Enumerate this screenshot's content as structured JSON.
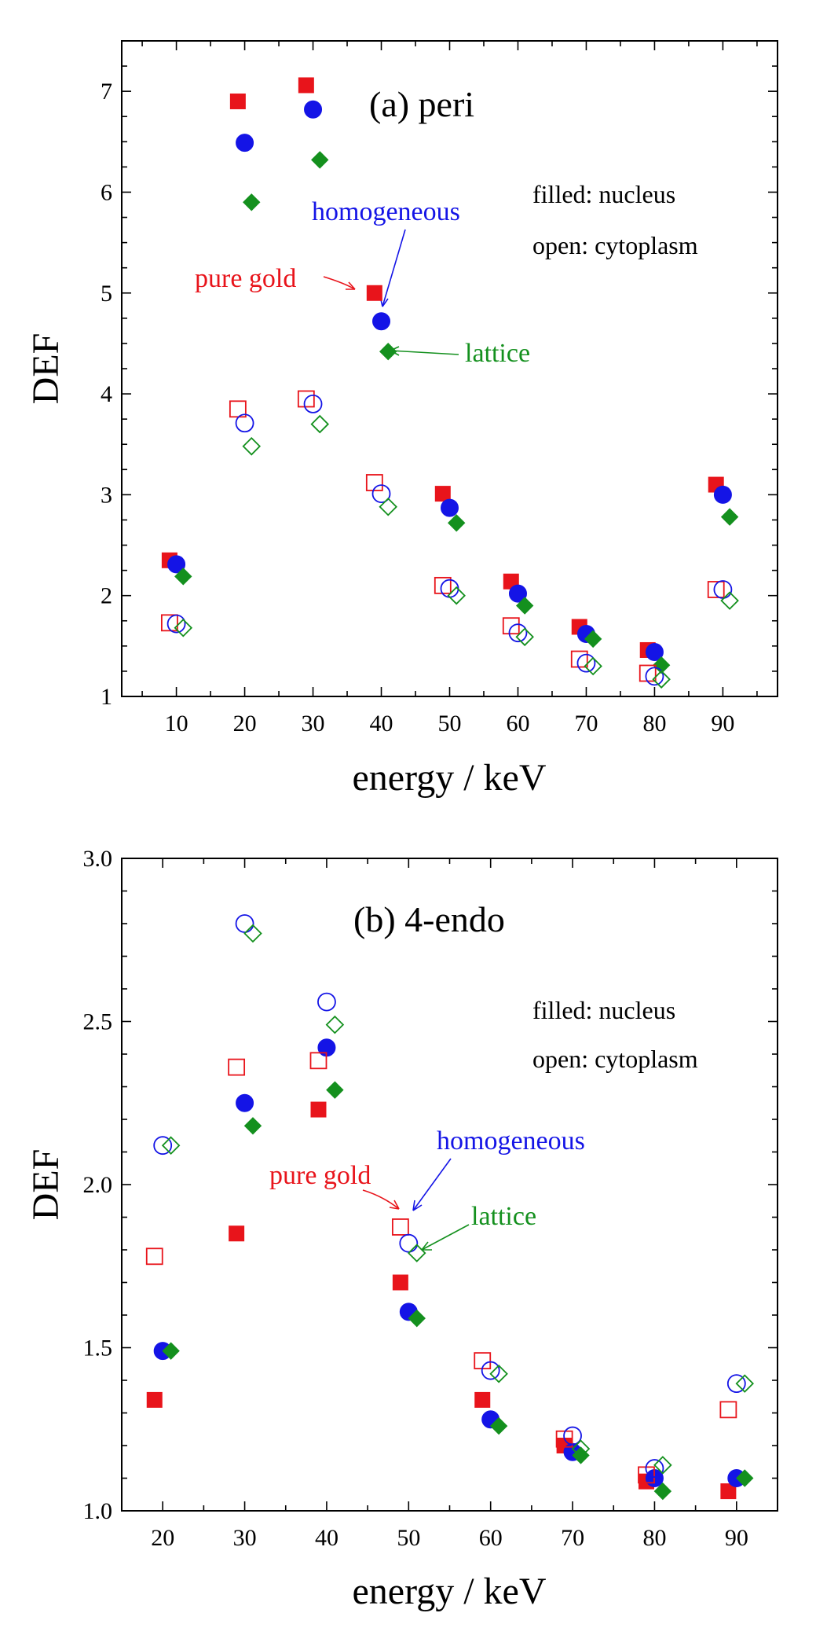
{
  "chart_data": [
    {
      "type": "scatter",
      "title": "(a) peri",
      "xlabel": "energy / keV",
      "ylabel": "DEF",
      "xlim": [
        2,
        98
      ],
      "ylim": [
        1,
        7.5
      ],
      "xticks": [
        10,
        20,
        30,
        40,
        50,
        60,
        70,
        80,
        90
      ],
      "xtick_labels": [
        "10",
        "20",
        "30",
        "40",
        "50",
        "60",
        "70",
        "80",
        "90"
      ],
      "yticks": [
        1,
        2,
        3,
        4,
        5,
        6,
        7
      ],
      "ytick_labels": [
        "1",
        "2",
        "3",
        "4",
        "5",
        "6",
        "7"
      ],
      "legend_lines": [
        "filled: nucleus",
        "open: cytoplasm"
      ],
      "annotations": [
        {
          "text": "pure gold",
          "color": "#e8141b",
          "target_series": "pure gold",
          "target_x": 39,
          "target_y": 5.0
        },
        {
          "text": "homogeneous",
          "color": "#1414e6",
          "target_series": "homogeneous",
          "target_x": 40,
          "target_y": 4.72
        },
        {
          "text": "lattice",
          "color": "#14901e",
          "target_series": "lattice",
          "target_x": 41,
          "target_y": 4.42
        }
      ],
      "series": [
        {
          "name": "pure gold",
          "region": "nucleus",
          "marker": "square",
          "filled": true,
          "color": "#e8141b",
          "x": [
            9,
            19,
            29,
            39,
            49,
            59,
            69,
            79,
            89
          ],
          "y": [
            2.35,
            6.9,
            7.06,
            5.0,
            3.01,
            2.14,
            1.69,
            1.46,
            3.1
          ]
        },
        {
          "name": "homogeneous",
          "region": "nucleus",
          "marker": "circle",
          "filled": true,
          "color": "#1414e6",
          "x": [
            10,
            20,
            30,
            40,
            50,
            60,
            70,
            80,
            90
          ],
          "y": [
            2.31,
            6.49,
            6.82,
            4.72,
            2.87,
            2.02,
            1.62,
            1.44,
            3.0
          ]
        },
        {
          "name": "lattice",
          "region": "nucleus",
          "marker": "diamond",
          "filled": true,
          "color": "#14901e",
          "x": [
            11,
            21,
            31,
            41,
            51,
            61,
            71,
            81,
            91
          ],
          "y": [
            2.19,
            5.9,
            6.32,
            4.42,
            2.72,
            1.9,
            1.57,
            1.31,
            2.78
          ]
        },
        {
          "name": "pure gold",
          "region": "cytoplasm",
          "marker": "square",
          "filled": false,
          "color": "#e8141b",
          "x": [
            9,
            19,
            29,
            39,
            49,
            59,
            69,
            79,
            89
          ],
          "y": [
            1.73,
            3.85,
            3.95,
            3.12,
            2.1,
            1.7,
            1.37,
            1.23,
            2.06
          ]
        },
        {
          "name": "homogeneous",
          "region": "cytoplasm",
          "marker": "circle",
          "filled": false,
          "color": "#1414e6",
          "x": [
            10,
            20,
            30,
            40,
            50,
            60,
            70,
            80,
            90
          ],
          "y": [
            1.72,
            3.71,
            3.9,
            3.01,
            2.07,
            1.63,
            1.33,
            1.2,
            2.06
          ]
        },
        {
          "name": "lattice",
          "region": "cytoplasm",
          "marker": "diamond",
          "filled": false,
          "color": "#14901e",
          "x": [
            11,
            21,
            31,
            41,
            51,
            61,
            71,
            81,
            91
          ],
          "y": [
            1.68,
            3.48,
            3.7,
            2.88,
            2.0,
            1.59,
            1.3,
            1.17,
            1.95
          ]
        }
      ]
    },
    {
      "type": "scatter",
      "title": "(b) 4-endo",
      "xlabel": "energy / keV",
      "ylabel": "DEF",
      "xlim": [
        15,
        95
      ],
      "ylim": [
        1.0,
        3.0
      ],
      "xticks": [
        20,
        30,
        40,
        50,
        60,
        70,
        80,
        90
      ],
      "xtick_labels": [
        "20",
        "30",
        "40",
        "50",
        "60",
        "70",
        "80",
        "90"
      ],
      "yticks": [
        1.0,
        1.5,
        2.0,
        2.5,
        3.0
      ],
      "ytick_labels": [
        "1.0",
        "1.5",
        "2.0",
        "2.5",
        "3.0"
      ],
      "legend_lines": [
        "filled: nucleus",
        "open: cytoplasm"
      ],
      "annotations": [
        {
          "text": "pure gold",
          "color": "#e8141b",
          "target_series": "pure gold",
          "target_x": 49,
          "target_y": 1.87
        },
        {
          "text": "homogeneous",
          "color": "#1414e6",
          "target_series": "homogeneous",
          "target_x": 50,
          "target_y": 1.82
        },
        {
          "text": "lattice",
          "color": "#14901e",
          "target_series": "lattice",
          "target_x": 51,
          "target_y": 1.79
        }
      ],
      "series": [
        {
          "name": "pure gold",
          "region": "nucleus",
          "marker": "square",
          "filled": true,
          "color": "#e8141b",
          "x": [
            19,
            29,
            39,
            49,
            59,
            69,
            79,
            89
          ],
          "y": [
            1.34,
            1.85,
            2.23,
            1.7,
            1.34,
            1.2,
            1.09,
            1.06
          ]
        },
        {
          "name": "homogeneous",
          "region": "nucleus",
          "marker": "circle",
          "filled": true,
          "color": "#1414e6",
          "x": [
            20,
            30,
            40,
            50,
            60,
            70,
            80,
            90
          ],
          "y": [
            1.49,
            2.25,
            2.42,
            1.61,
            1.28,
            1.18,
            1.1,
            1.1
          ]
        },
        {
          "name": "lattice",
          "region": "nucleus",
          "marker": "diamond",
          "filled": true,
          "color": "#14901e",
          "x": [
            21,
            31,
            41,
            51,
            61,
            71,
            81,
            91
          ],
          "y": [
            1.49,
            2.18,
            2.29,
            1.59,
            1.26,
            1.17,
            1.06,
            1.1
          ]
        },
        {
          "name": "pure gold",
          "region": "cytoplasm",
          "marker": "square",
          "filled": false,
          "color": "#e8141b",
          "x": [
            19,
            29,
            39,
            49,
            59,
            69,
            79,
            89
          ],
          "y": [
            1.78,
            2.36,
            2.38,
            1.87,
            1.46,
            1.22,
            1.11,
            1.31
          ]
        },
        {
          "name": "homogeneous",
          "region": "cytoplasm",
          "marker": "circle",
          "filled": false,
          "color": "#1414e6",
          "x": [
            20,
            30,
            40,
            50,
            60,
            70,
            80,
            90
          ],
          "y": [
            2.12,
            2.8,
            2.56,
            1.82,
            1.43,
            1.23,
            1.13,
            1.39
          ]
        },
        {
          "name": "lattice",
          "region": "cytoplasm",
          "marker": "diamond",
          "filled": false,
          "color": "#14901e",
          "x": [
            21,
            31,
            41,
            51,
            61,
            71,
            81,
            91
          ],
          "y": [
            2.12,
            2.77,
            2.49,
            1.79,
            1.42,
            1.19,
            1.14,
            1.39
          ]
        }
      ]
    }
  ]
}
